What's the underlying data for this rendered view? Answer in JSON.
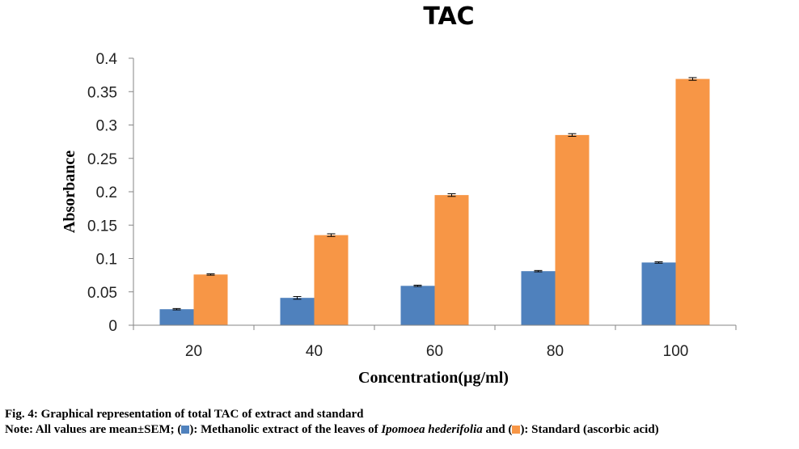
{
  "colors": {
    "extract": "#4F81BD",
    "standard": "#F79646"
  },
  "chart_data": {
    "type": "bar",
    "title": "TAC",
    "xlabel": "Concentration(µg/ml)",
    "ylabel": "Absorbance",
    "categories": [
      "20",
      "40",
      "60",
      "80",
      "100"
    ],
    "ylim": [
      0,
      0.4
    ],
    "yticks": [
      "0",
      "0.05",
      "0.1",
      "0.15",
      "0.2",
      "0.25",
      "0.3",
      "0.35",
      "0.4"
    ],
    "grid": false,
    "legend": "none",
    "series": [
      {
        "values": [
          0.024,
          0.041,
          0.059,
          0.081,
          0.094
        ],
        "errors": [
          0.001,
          0.002,
          0.001,
          0.001,
          0.001
        ]
      },
      {
        "values": [
          0.076,
          0.135,
          0.195,
          0.285,
          0.369
        ],
        "errors": [
          0.001,
          0.002,
          0.002,
          0.002,
          0.002
        ]
      }
    ]
  },
  "caption": {
    "fig": "Fig. 4: Graphical representation of total TAC of extract and standard",
    "note_prefix": "Note: All values are mean±SEM; (",
    "note_extract": "): Methanolic extract of the leaves of ",
    "note_species": "Ipomoea hederifolia",
    "note_and": " and (",
    "note_standard": "): Standard (ascorbic acid)"
  }
}
